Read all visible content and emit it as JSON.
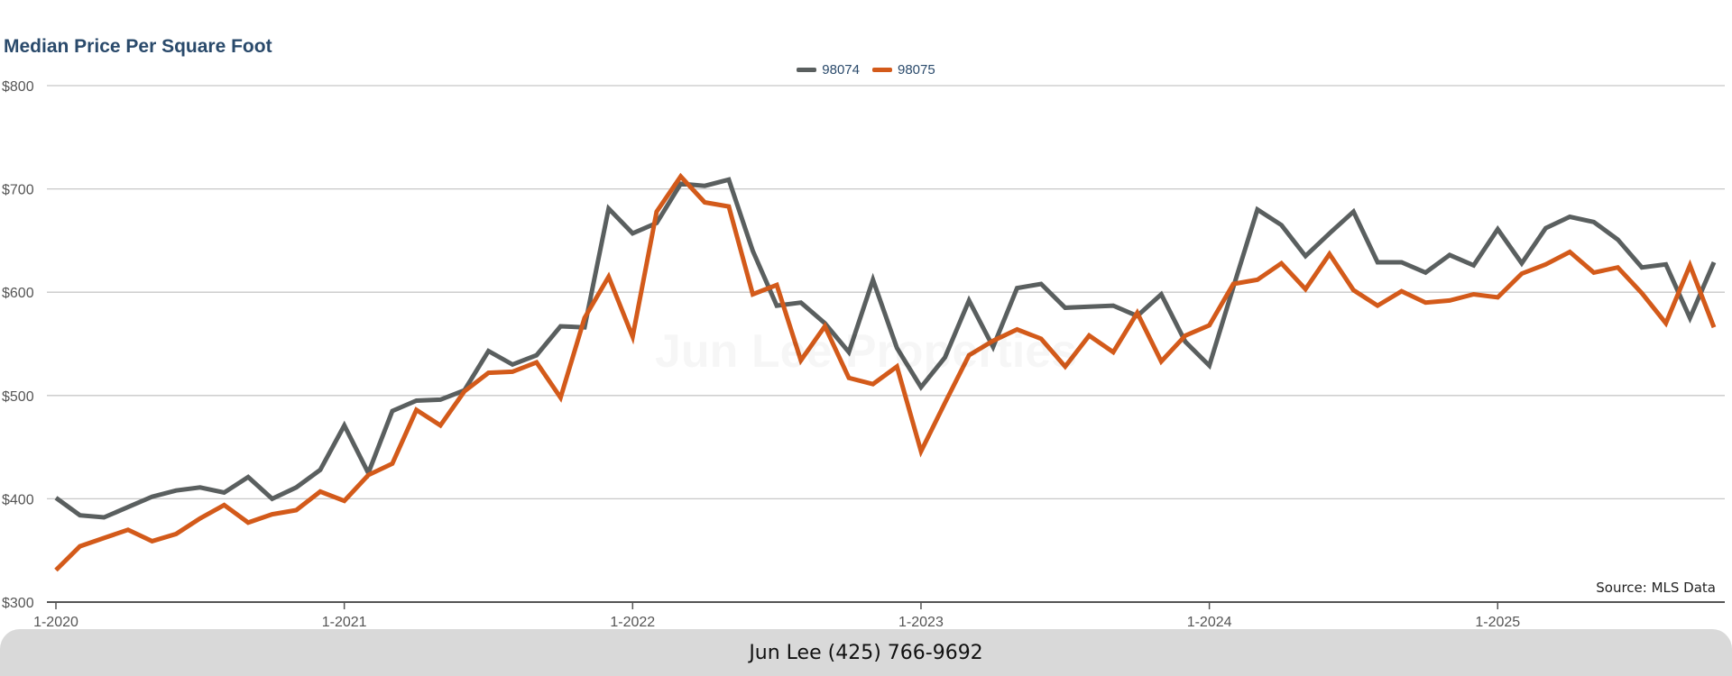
{
  "chart_data": {
    "type": "line",
    "title": "Median Price Per Square Foot",
    "source": "Source: MLS Data",
    "watermark": "Jun Lee Properties",
    "footer": "Jun Lee (425) 766-9692",
    "x_tick_labels": [
      "1-2020",
      "1-2021",
      "1-2022",
      "1-2023",
      "1-2024",
      "1-2025"
    ],
    "y_tick_labels": [
      "$300",
      "$400",
      "$500",
      "$600",
      "$700",
      "$800"
    ],
    "y_ticks": [
      300,
      400,
      500,
      600,
      700,
      800
    ],
    "ylim": [
      300,
      800
    ],
    "x_start": "2020-01",
    "x_end": "2025-10",
    "grid": true,
    "legend_position": "top-center",
    "series": [
      {
        "name": "98074",
        "color": "#5a5f5f",
        "values": [
          401,
          384,
          382,
          392,
          402,
          408,
          411,
          406,
          421,
          400,
          411,
          428,
          471,
          425,
          485,
          495,
          496,
          505,
          543,
          530,
          539,
          567,
          566,
          681,
          657,
          667,
          705,
          703,
          709,
          640,
          587,
          590,
          570,
          542,
          612,
          546,
          508,
          537,
          592,
          547,
          604,
          608,
          585,
          586,
          587,
          577,
          598,
          552,
          529,
          605,
          680,
          665,
          635,
          657,
          678,
          629,
          629,
          619,
          636,
          626,
          661,
          628,
          662,
          673,
          668,
          651,
          624,
          627,
          575,
          629
        ]
      },
      {
        "name": "98075",
        "color": "#d35a1a",
        "values": [
          331,
          354,
          362,
          370,
          359,
          366,
          381,
          394,
          377,
          385,
          389,
          407,
          398,
          423,
          434,
          486,
          471,
          504,
          522,
          523,
          532,
          498,
          575,
          615,
          557,
          678,
          712,
          687,
          683,
          598,
          607,
          534,
          567,
          517,
          511,
          528,
          446,
          493,
          539,
          553,
          564,
          555,
          528,
          558,
          542,
          580,
          533,
          558,
          568,
          608,
          612,
          628,
          603,
          637,
          602,
          587,
          601,
          590,
          592,
          598,
          595,
          618,
          627,
          639,
          619,
          624,
          599,
          570,
          626,
          566
        ]
      }
    ]
  }
}
